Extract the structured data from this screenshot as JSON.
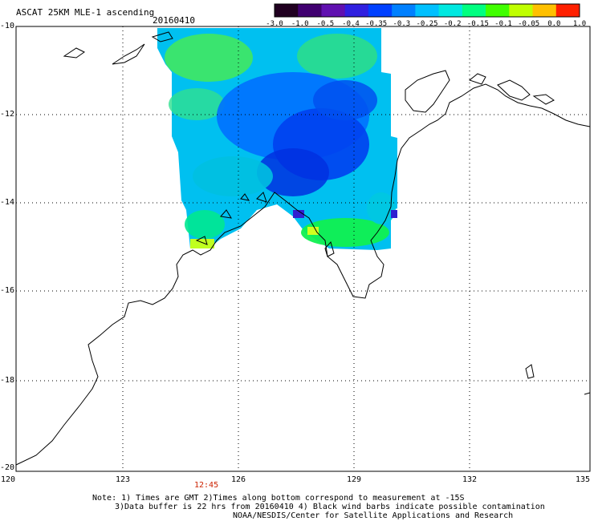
{
  "header": {
    "title": "ASCAT 25KM MLE-1 ascending",
    "date": "20160410"
  },
  "colorbar": {
    "labels": [
      "-3.0",
      "-1.0",
      "-0.5",
      "-0.4",
      "-0.35",
      "-0.3",
      "-0.25",
      "-0.2",
      "-0.15",
      "-0.1",
      "-0.05",
      "0.0",
      "1.0"
    ],
    "colors": [
      "#200020",
      "#400070",
      "#6010b0",
      "#3020e0",
      "#0040ff",
      "#0080ff",
      "#00c0ff",
      "#00e8e0",
      "#00ff80",
      "#40ff00",
      "#c0ff00",
      "#ffc000",
      "#ff2000"
    ]
  },
  "axes": {
    "lat_labels": [
      "-10",
      "-12",
      "-14",
      "-16",
      "-18",
      "-20"
    ],
    "lon_labels": [
      "120",
      "123",
      "126",
      "129",
      "132",
      "135"
    ]
  },
  "pass_time": "12:45",
  "footer": {
    "line1": "Note: 1) Times are GMT 2)Times along bottom correspond to measurement at -15S",
    "line2": "3)Data buffer is 22 hrs from 20160410 4) Black wind barbs indicate possible contamination",
    "line3": "NOAA/NESDIS/Center for Satellite Applications and Research"
  }
}
